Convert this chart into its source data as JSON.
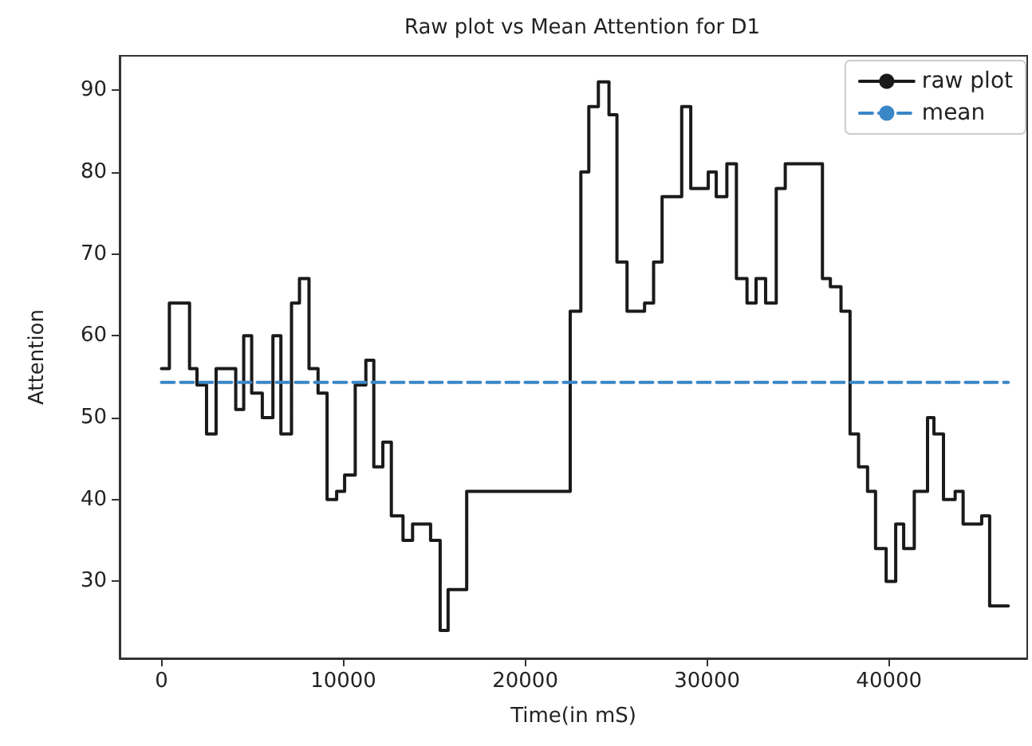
{
  "chart_data": {
    "type": "step",
    "title": "Raw plot vs Mean Attention for D1",
    "xlabel": "Time(in mS)",
    "ylabel": "Attention",
    "xlim": [
      -2300,
      47600
    ],
    "ylim": [
      20.6,
      94.2
    ],
    "xticks": [
      0,
      10000,
      20000,
      30000,
      40000
    ],
    "yticks": [
      30,
      40,
      50,
      60,
      70,
      80,
      90
    ],
    "grid": false,
    "legend": "top right",
    "marker": "none",
    "series": [
      {
        "name": "raw plot",
        "type": "step",
        "color": "#1a1a1a",
        "line_style": "solid",
        "x": [
          0,
          435,
          1544,
          1953,
          2478,
          3004,
          4084,
          4522,
          4960,
          5544,
          6128,
          6566,
          7150,
          7588,
          8113,
          8610,
          9106,
          9632,
          10070,
          10654,
          11238,
          11675,
          12172,
          12639,
          13281,
          13807,
          14797,
          15323,
          15760,
          16782,
          22474,
          23058,
          23496,
          24021,
          24605,
          25043,
          25598,
          26561,
          27058,
          27525,
          28604,
          29101,
          30064,
          30502,
          31086,
          31611,
          32195,
          32691,
          33217,
          33801,
          34297,
          36341,
          36778,
          37362,
          37859,
          38326,
          38822,
          39260,
          39844,
          40369,
          40807,
          41390,
          42120,
          42471,
          42996,
          43638,
          44076,
          45097,
          45535,
          46557
        ],
        "values": [
          56,
          64,
          56,
          54,
          48,
          56,
          51,
          60,
          53,
          50,
          60,
          48,
          64,
          67,
          56,
          53,
          40,
          41,
          43,
          54,
          57,
          44,
          47,
          38,
          35,
          37,
          35,
          24,
          29,
          41,
          63,
          80,
          88,
          91,
          87,
          69,
          63,
          64,
          69,
          77,
          88,
          78,
          80,
          77,
          81,
          67,
          64,
          67,
          64,
          78,
          81,
          67,
          66,
          63,
          48,
          44,
          41,
          34,
          30,
          37,
          34,
          41,
          50,
          48,
          40,
          41,
          37,
          38,
          27,
          27
        ]
      },
      {
        "name": "mean",
        "type": "line",
        "color": "#3a87c8",
        "line_style": "dashed",
        "x": [
          0,
          46557
        ],
        "values": [
          54.3,
          54.3
        ]
      }
    ]
  }
}
